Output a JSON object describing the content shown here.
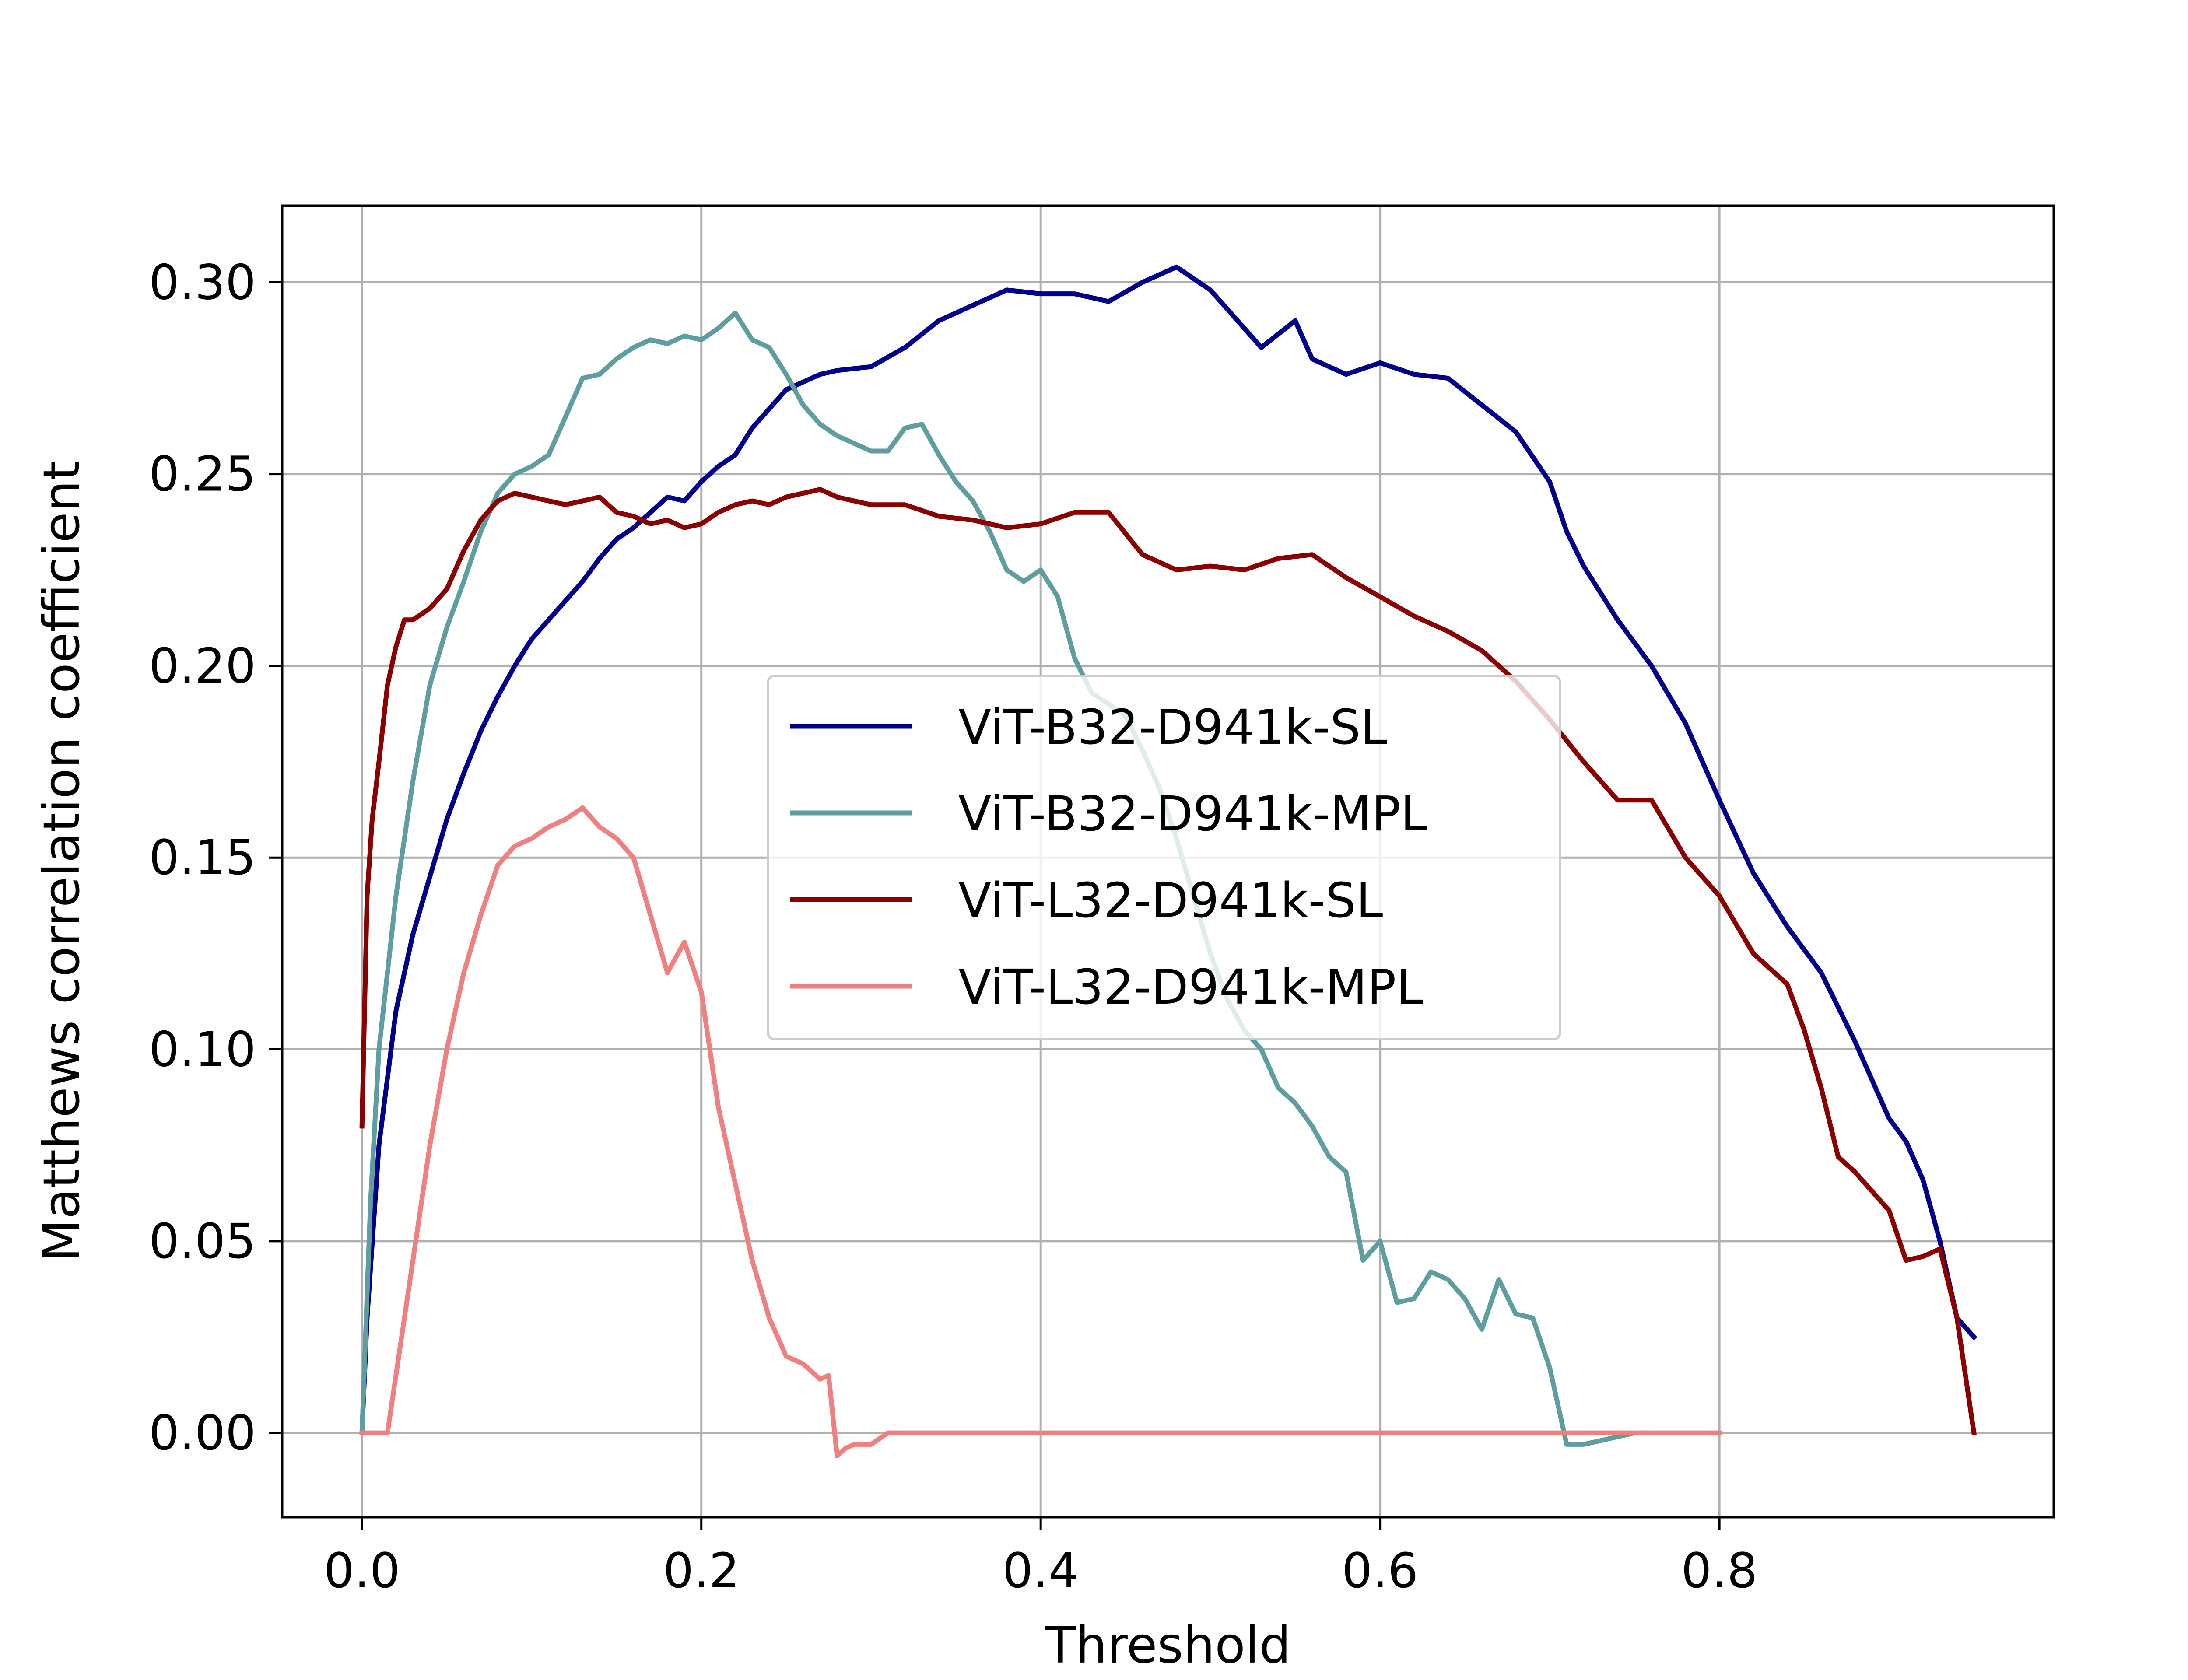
{
  "chart_data": {
    "type": "line",
    "title": "",
    "xlabel": "Threshold",
    "ylabel": "Matthews correlation coefficient",
    "xlim": [
      -0.047,
      0.997
    ],
    "ylim": [
      -0.022,
      0.32
    ],
    "xticks": [
      0.0,
      0.2,
      0.4,
      0.6,
      0.8
    ],
    "xtick_labels": [
      "0.0",
      "0.2",
      "0.4",
      "0.6",
      "0.8"
    ],
    "yticks": [
      0.0,
      0.05,
      0.1,
      0.15,
      0.2,
      0.25,
      0.3
    ],
    "ytick_labels": [
      "0.00",
      "0.05",
      "0.10",
      "0.15",
      "0.20",
      "0.25",
      "0.30"
    ],
    "grid": true,
    "legend_position": "center-right",
    "series": [
      {
        "name": "ViT-B32-D941k-SL",
        "color": "#00008b",
        "x": [
          0.0,
          0.003,
          0.01,
          0.02,
          0.03,
          0.04,
          0.05,
          0.06,
          0.07,
          0.08,
          0.09,
          0.1,
          0.11,
          0.12,
          0.13,
          0.14,
          0.15,
          0.16,
          0.17,
          0.18,
          0.19,
          0.2,
          0.21,
          0.22,
          0.23,
          0.24,
          0.25,
          0.26,
          0.27,
          0.28,
          0.3,
          0.32,
          0.34,
          0.36,
          0.38,
          0.4,
          0.42,
          0.44,
          0.46,
          0.48,
          0.5,
          0.52,
          0.53,
          0.55,
          0.56,
          0.58,
          0.6,
          0.62,
          0.64,
          0.66,
          0.68,
          0.7,
          0.71,
          0.72,
          0.74,
          0.76,
          0.78,
          0.8,
          0.82,
          0.84,
          0.86,
          0.88,
          0.89,
          0.9,
          0.91,
          0.92,
          0.93,
          0.94,
          0.95
        ],
        "y": [
          0.0,
          0.03,
          0.075,
          0.11,
          0.13,
          0.145,
          0.16,
          0.172,
          0.183,
          0.192,
          0.2,
          0.207,
          0.212,
          0.217,
          0.222,
          0.228,
          0.233,
          0.236,
          0.24,
          0.244,
          0.243,
          0.248,
          0.252,
          0.255,
          0.262,
          0.267,
          0.272,
          0.274,
          0.276,
          0.277,
          0.278,
          0.283,
          0.29,
          0.294,
          0.298,
          0.297,
          0.297,
          0.295,
          0.3,
          0.304,
          0.298,
          0.288,
          0.283,
          0.29,
          0.28,
          0.276,
          0.279,
          0.276,
          0.275,
          0.268,
          0.261,
          0.248,
          0.235,
          0.226,
          0.212,
          0.2,
          0.185,
          0.165,
          0.146,
          0.132,
          0.12,
          0.102,
          0.092,
          0.082,
          0.076,
          0.066,
          0.05,
          0.03,
          0.025
        ]
      },
      {
        "name": "ViT-B32-D941k-MPL",
        "color": "#5f9ea0",
        "x": [
          0.0,
          0.005,
          0.01,
          0.02,
          0.03,
          0.04,
          0.05,
          0.06,
          0.07,
          0.08,
          0.09,
          0.1,
          0.11,
          0.12,
          0.13,
          0.14,
          0.15,
          0.16,
          0.17,
          0.18,
          0.19,
          0.2,
          0.21,
          0.22,
          0.23,
          0.24,
          0.25,
          0.26,
          0.27,
          0.28,
          0.29,
          0.3,
          0.31,
          0.32,
          0.33,
          0.34,
          0.35,
          0.36,
          0.37,
          0.38,
          0.39,
          0.4,
          0.41,
          0.42,
          0.43,
          0.44,
          0.45,
          0.46,
          0.47,
          0.48,
          0.49,
          0.5,
          0.51,
          0.52,
          0.53,
          0.54,
          0.55,
          0.56,
          0.57,
          0.58,
          0.59,
          0.6,
          0.61,
          0.62,
          0.63,
          0.64,
          0.65,
          0.66,
          0.67,
          0.68,
          0.69,
          0.7,
          0.71,
          0.72,
          0.73,
          0.74,
          0.75,
          0.76
        ],
        "y": [
          0.0,
          0.06,
          0.1,
          0.14,
          0.17,
          0.195,
          0.21,
          0.222,
          0.235,
          0.245,
          0.25,
          0.252,
          0.255,
          0.265,
          0.275,
          0.276,
          0.28,
          0.283,
          0.285,
          0.284,
          0.286,
          0.285,
          0.288,
          0.292,
          0.285,
          0.283,
          0.276,
          0.268,
          0.263,
          0.26,
          0.258,
          0.256,
          0.256,
          0.262,
          0.263,
          0.255,
          0.248,
          0.243,
          0.235,
          0.225,
          0.222,
          0.225,
          0.218,
          0.202,
          0.193,
          0.19,
          0.187,
          0.178,
          0.168,
          0.155,
          0.14,
          0.125,
          0.113,
          0.105,
          0.1,
          0.09,
          0.086,
          0.08,
          0.072,
          0.068,
          0.045,
          0.05,
          0.034,
          0.035,
          0.042,
          0.04,
          0.035,
          0.027,
          0.04,
          0.031,
          0.03,
          0.017,
          -0.003,
          -0.003,
          -0.002,
          -0.001,
          0.0,
          0.0
        ]
      },
      {
        "name": "ViT-L32-D941k-SL",
        "color": "#8b0000",
        "x": [
          0.0,
          0.003,
          0.006,
          0.01,
          0.015,
          0.02,
          0.025,
          0.03,
          0.04,
          0.05,
          0.06,
          0.07,
          0.08,
          0.09,
          0.1,
          0.11,
          0.12,
          0.13,
          0.14,
          0.15,
          0.16,
          0.17,
          0.18,
          0.19,
          0.2,
          0.21,
          0.22,
          0.23,
          0.24,
          0.25,
          0.26,
          0.27,
          0.28,
          0.29,
          0.3,
          0.32,
          0.34,
          0.36,
          0.38,
          0.4,
          0.42,
          0.44,
          0.46,
          0.48,
          0.5,
          0.52,
          0.54,
          0.56,
          0.58,
          0.6,
          0.62,
          0.64,
          0.66,
          0.68,
          0.7,
          0.72,
          0.74,
          0.76,
          0.78,
          0.8,
          0.82,
          0.84,
          0.85,
          0.86,
          0.87,
          0.88,
          0.89,
          0.9,
          0.91,
          0.92,
          0.93,
          0.94,
          0.95
        ],
        "y": [
          0.08,
          0.14,
          0.16,
          0.175,
          0.195,
          0.205,
          0.212,
          0.212,
          0.215,
          0.22,
          0.23,
          0.238,
          0.243,
          0.245,
          0.244,
          0.243,
          0.242,
          0.243,
          0.244,
          0.24,
          0.239,
          0.237,
          0.238,
          0.236,
          0.237,
          0.24,
          0.242,
          0.243,
          0.242,
          0.244,
          0.245,
          0.246,
          0.244,
          0.243,
          0.242,
          0.242,
          0.239,
          0.238,
          0.236,
          0.237,
          0.24,
          0.24,
          0.229,
          0.225,
          0.226,
          0.225,
          0.228,
          0.229,
          0.223,
          0.218,
          0.213,
          0.209,
          0.204,
          0.196,
          0.186,
          0.175,
          0.165,
          0.165,
          0.15,
          0.14,
          0.125,
          0.117,
          0.105,
          0.09,
          0.072,
          0.068,
          0.063,
          0.058,
          0.045,
          0.046,
          0.048,
          0.03,
          0.0
        ]
      },
      {
        "name": "ViT-L32-D941k-MPL",
        "color": "#f08080",
        "x": [
          0.0,
          0.01,
          0.015,
          0.02,
          0.03,
          0.04,
          0.05,
          0.06,
          0.07,
          0.08,
          0.09,
          0.1,
          0.11,
          0.12,
          0.13,
          0.14,
          0.15,
          0.16,
          0.17,
          0.18,
          0.19,
          0.2,
          0.21,
          0.22,
          0.23,
          0.24,
          0.25,
          0.26,
          0.27,
          0.275,
          0.28,
          0.285,
          0.29,
          0.3,
          0.31,
          0.32,
          0.8
        ],
        "y": [
          0.0,
          0.0,
          0.0,
          0.015,
          0.045,
          0.075,
          0.1,
          0.12,
          0.135,
          0.148,
          0.153,
          0.155,
          0.158,
          0.16,
          0.163,
          0.158,
          0.155,
          0.15,
          0.135,
          0.12,
          0.128,
          0.115,
          0.085,
          0.065,
          0.045,
          0.03,
          0.02,
          0.018,
          0.014,
          0.015,
          -0.006,
          -0.004,
          -0.003,
          -0.003,
          0.0,
          0.0,
          0.0
        ]
      }
    ]
  }
}
